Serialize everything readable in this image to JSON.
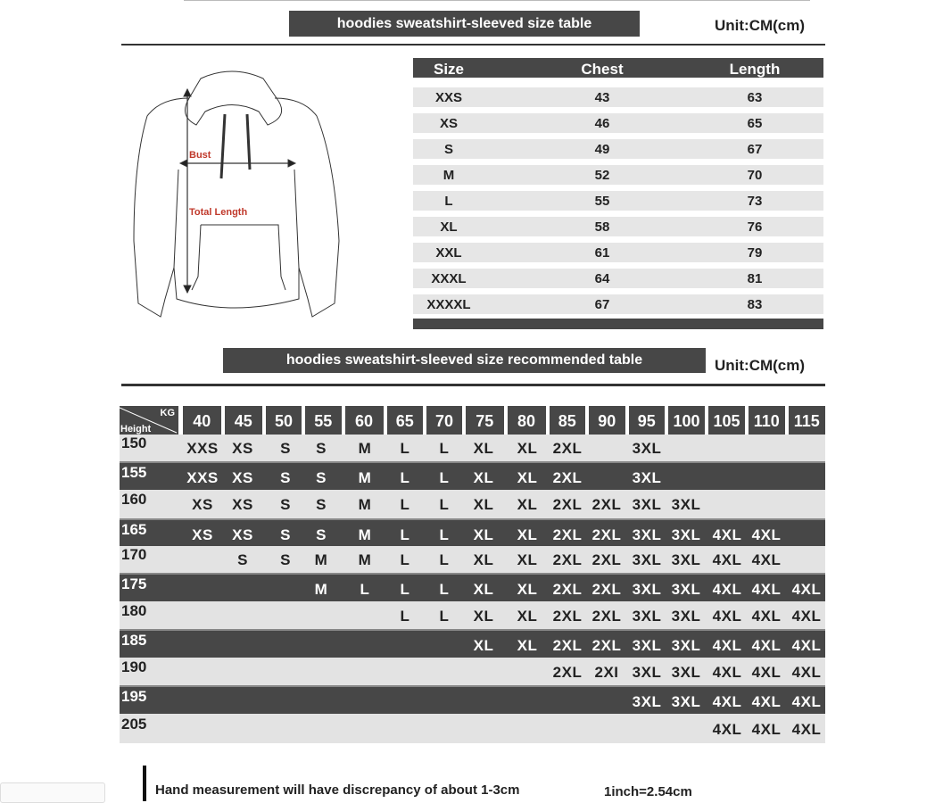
{
  "size_table": {
    "title": "hoodies sweatshirt-sleeved size  table",
    "unit": "Unit:CM(cm)",
    "headers": [
      "Size",
      "Chest",
      "Length"
    ],
    "rows": [
      [
        "XXS",
        "43",
        "63"
      ],
      [
        "XS",
        "46",
        "65"
      ],
      [
        "S",
        "49",
        "67"
      ],
      [
        "M",
        "52",
        "70"
      ],
      [
        "L",
        "55",
        "73"
      ],
      [
        "XL",
        "58",
        "76"
      ],
      [
        "XXL",
        "61",
        "79"
      ],
      [
        "XXXL",
        "64",
        "81"
      ],
      [
        "XXXXL",
        "67",
        "83"
      ]
    ]
  },
  "diagram": {
    "bust_label": "Bust",
    "length_label": "Total Length",
    "label_color": "#c0392b"
  },
  "recommended_table": {
    "title": "hoodies sweatshirt-sleeved size recommended table",
    "unit": "Unit:CM(cm)",
    "corner_top": "KG",
    "corner_bottom": "Height",
    "weights": [
      "40",
      "45",
      "50",
      "55",
      "60",
      "65",
      "70",
      "75",
      "80",
      "85",
      "90",
      "95",
      "100",
      "105",
      "110",
      "115"
    ],
    "rows": [
      {
        "height": "150",
        "sizes": [
          "XXS",
          "XS",
          "S",
          "S",
          "M",
          "L",
          "L",
          "XL",
          "XL",
          "2XL",
          "",
          "3XL",
          "",
          "",
          "",
          ""
        ]
      },
      {
        "height": "155",
        "sizes": [
          "XXS",
          "XS",
          "S",
          "S",
          "M",
          "L",
          "L",
          "XL",
          "XL",
          "2XL",
          "",
          "3XL",
          "",
          "",
          "",
          ""
        ]
      },
      {
        "height": "160",
        "sizes": [
          "XS",
          "XS",
          "S",
          "S",
          "M",
          "L",
          "L",
          "XL",
          "XL",
          "2XL",
          "2XL",
          "3XL",
          "3XL",
          "",
          "",
          ""
        ]
      },
      {
        "height": "165",
        "sizes": [
          "XS",
          "XS",
          "S",
          "S",
          "M",
          "L",
          "L",
          "XL",
          "XL",
          "2XL",
          "2XL",
          "3XL",
          "3XL",
          "4XL",
          "4XL",
          ""
        ]
      },
      {
        "height": "170",
        "sizes": [
          "",
          "S",
          "S",
          "M",
          "M",
          "L",
          "L",
          "XL",
          "XL",
          "2XL",
          "2XL",
          "3XL",
          "3XL",
          "4XL",
          "4XL",
          ""
        ]
      },
      {
        "height": "175",
        "sizes": [
          "",
          "",
          "",
          "M",
          "L",
          "L",
          "L",
          "XL",
          "XL",
          "2XL",
          "2XL",
          "3XL",
          "3XL",
          "4XL",
          "4XL",
          "4XL"
        ]
      },
      {
        "height": "180",
        "sizes": [
          "",
          "",
          "",
          "",
          "",
          "L",
          "L",
          "XL",
          "XL",
          "2XL",
          "2XL",
          "3XL",
          "3XL",
          "4XL",
          "4XL",
          "4XL"
        ]
      },
      {
        "height": "185",
        "sizes": [
          "",
          "",
          "",
          "",
          "",
          "",
          "",
          "XL",
          "XL",
          "2XL",
          "2XL",
          "3XL",
          "3XL",
          "4XL",
          "4XL",
          "4XL"
        ]
      },
      {
        "height": "190",
        "sizes": [
          "",
          "",
          "",
          "",
          "",
          "",
          "",
          "",
          "",
          "2XL",
          "2XI",
          "3XL",
          "3XL",
          "4XL",
          "4XL",
          "4XL"
        ]
      },
      {
        "height": "195",
        "sizes": [
          "",
          "",
          "",
          "",
          "",
          "",
          "",
          "",
          "",
          "",
          "",
          "3XL",
          "3XL",
          "4XL",
          "4XL",
          "4XL"
        ]
      },
      {
        "height": "205",
        "sizes": [
          "",
          "",
          "",
          "",
          "",
          "",
          "",
          "",
          "",
          "",
          "",
          "",
          "",
          "4XL",
          "4XL",
          "4XL"
        ]
      }
    ]
  },
  "footer": {
    "note": "Hand measurement will have discrepancy of about  1-3cm",
    "conversion": "1inch=2.54cm"
  },
  "colors": {
    "dark": "#474747",
    "light": "#e3e3e3"
  }
}
